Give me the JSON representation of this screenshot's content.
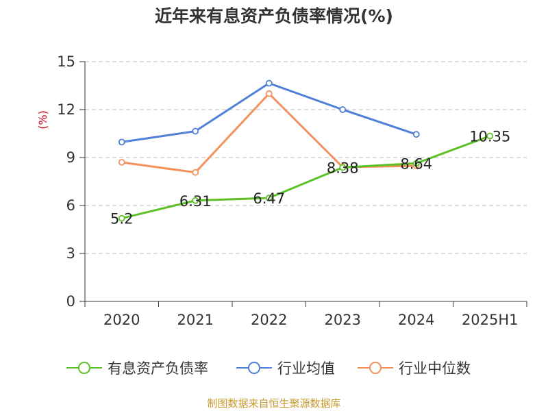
{
  "title": "近年来有息资产负债率情况(%)",
  "source": "制图数据来自恒生聚源数据库",
  "chart_data": {
    "type": "line",
    "title": "近年来有息资产负债率情况(%)",
    "ylabel": "(%)",
    "xlabel": "",
    "categories": [
      "2020",
      "2021",
      "2022",
      "2023",
      "2024",
      "2025H1"
    ],
    "ylim": [
      0,
      15
    ],
    "yticks": [
      0,
      3,
      6,
      9,
      12,
      15
    ],
    "grid": true,
    "legend_position": "bottom",
    "series": [
      {
        "name": "有息资产负债率",
        "color": "#5cc126",
        "values": [
          5.2,
          6.31,
          6.47,
          8.38,
          8.64,
          10.35
        ],
        "labels": [
          "5.2",
          "6.31",
          "6.47",
          "8.38",
          "8.64",
          "10.35"
        ]
      },
      {
        "name": "行业均值",
        "color": "#4f7fd6",
        "values": [
          9.97,
          10.65,
          13.65,
          12.0,
          10.45,
          null
        ]
      },
      {
        "name": "行业中位数",
        "color": "#f4925b",
        "values": [
          8.7,
          8.07,
          13.0,
          8.4,
          8.48,
          null
        ]
      }
    ]
  }
}
